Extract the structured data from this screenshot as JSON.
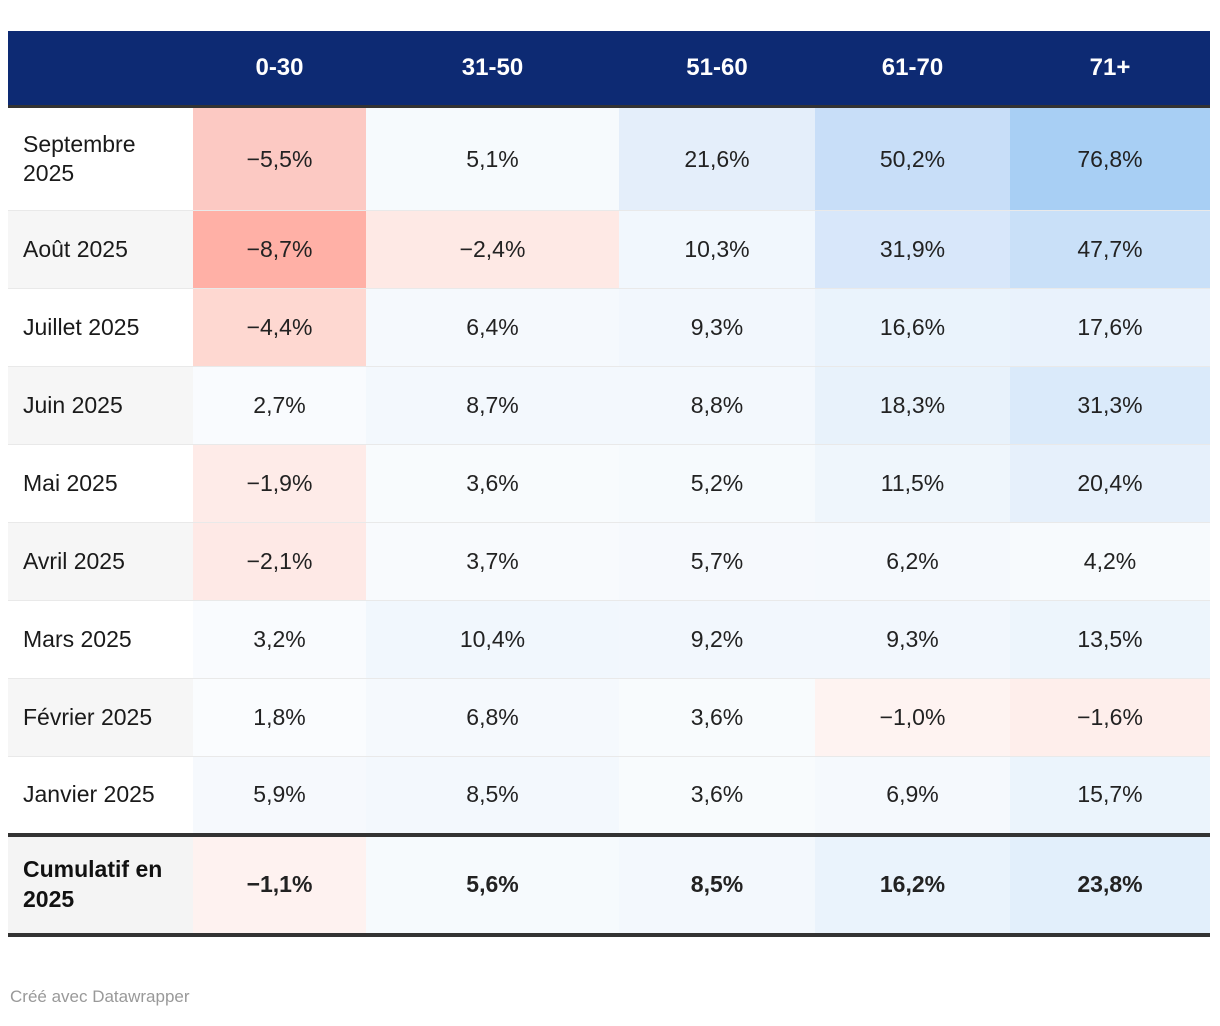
{
  "table": {
    "columns": [
      "0-30",
      "31-50",
      "51-60",
      "61-70",
      "71+"
    ],
    "header_bg": "#0d2a73",
    "header_text_color": "#ffffff",
    "border_color": "#333333",
    "rows": [
      {
        "label": "Septembre 2025",
        "cells": [
          {
            "text": "−5,5%",
            "bg": "#fcc9c3"
          },
          {
            "text": "5,1%",
            "bg": "#f6fafd"
          },
          {
            "text": "21,6%",
            "bg": "#e4eefa"
          },
          {
            "text": "50,2%",
            "bg": "#c8def8"
          },
          {
            "text": "76,8%",
            "bg": "#a8cff4"
          }
        ]
      },
      {
        "label": "Août 2025",
        "cells": [
          {
            "text": "−8,7%",
            "bg": "#ffb0a6"
          },
          {
            "text": "−2,4%",
            "bg": "#fee9e5"
          },
          {
            "text": "10,3%",
            "bg": "#f1f7fd"
          },
          {
            "text": "31,9%",
            "bg": "#d8e7fa"
          },
          {
            "text": "47,7%",
            "bg": "#c9e0f8"
          }
        ]
      },
      {
        "label": "Juillet 2025",
        "cells": [
          {
            "text": "−4,4%",
            "bg": "#fed8d1"
          },
          {
            "text": "6,4%",
            "bg": "#f5f9fd"
          },
          {
            "text": "9,3%",
            "bg": "#f2f7fd"
          },
          {
            "text": "16,6%",
            "bg": "#eaf3fc"
          },
          {
            "text": "17,6%",
            "bg": "#e9f2fc"
          }
        ]
      },
      {
        "label": "Juin 2025",
        "cells": [
          {
            "text": "2,7%",
            "bg": "#f9fbfe"
          },
          {
            "text": "8,7%",
            "bg": "#f3f8fd"
          },
          {
            "text": "8,8%",
            "bg": "#f3f8fd"
          },
          {
            "text": "18,3%",
            "bg": "#e8f2fb"
          },
          {
            "text": "31,3%",
            "bg": "#daeafa"
          }
        ]
      },
      {
        "label": "Mai 2025",
        "cells": [
          {
            "text": "−1,9%",
            "bg": "#feebe8"
          },
          {
            "text": "3,6%",
            "bg": "#f8fbfd"
          },
          {
            "text": "5,2%",
            "bg": "#f6fafd"
          },
          {
            "text": "11,5%",
            "bg": "#eff6fc"
          },
          {
            "text": "20,4%",
            "bg": "#e6f0fb"
          }
        ]
      },
      {
        "label": "Avril 2025",
        "cells": [
          {
            "text": "−2,1%",
            "bg": "#fee9e6"
          },
          {
            "text": "3,7%",
            "bg": "#f8fafd"
          },
          {
            "text": "5,7%",
            "bg": "#f6f9fd"
          },
          {
            "text": "6,2%",
            "bg": "#f5f9fd"
          },
          {
            "text": "4,2%",
            "bg": "#f7fafd"
          }
        ]
      },
      {
        "label": "Mars 2025",
        "cells": [
          {
            "text": "3,2%",
            "bg": "#f9fbfe"
          },
          {
            "text": "10,4%",
            "bg": "#f1f7fd"
          },
          {
            "text": "9,2%",
            "bg": "#f2f7fd"
          },
          {
            "text": "9,3%",
            "bg": "#f2f7fd"
          },
          {
            "text": "13,5%",
            "bg": "#edf5fc"
          }
        ]
      },
      {
        "label": "Février 2025",
        "cells": [
          {
            "text": "1,8%",
            "bg": "#fafcfe"
          },
          {
            "text": "6,8%",
            "bg": "#f5f9fd"
          },
          {
            "text": "3,6%",
            "bg": "#f8fbfd"
          },
          {
            "text": "−1,0%",
            "bg": "#fef3f1"
          },
          {
            "text": "−1,6%",
            "bg": "#feeeeb"
          }
        ]
      },
      {
        "label": "Janvier 2025",
        "cells": [
          {
            "text": "5,9%",
            "bg": "#f6f9fd"
          },
          {
            "text": "8,5%",
            "bg": "#f3f8fd"
          },
          {
            "text": "3,6%",
            "bg": "#f8fbfd"
          },
          {
            "text": "6,9%",
            "bg": "#f5f9fd"
          },
          {
            "text": "15,7%",
            "bg": "#ebf4fc"
          }
        ]
      }
    ],
    "total_row": {
      "label": "Cumulatif en 2025",
      "cells": [
        {
          "text": "−1,1%",
          "bg": "#fef2f0"
        },
        {
          "text": "5,6%",
          "bg": "#f6fafd"
        },
        {
          "text": "8,5%",
          "bg": "#f3f8fd"
        },
        {
          "text": "16,2%",
          "bg": "#eaf3fc"
        },
        {
          "text": "23,8%",
          "bg": "#e2effb"
        }
      ]
    }
  },
  "attribution": "Créé avec Datawrapper",
  "colors": {
    "header_navy": "#0d2a73",
    "strong_negative_red": "#ffb0a6",
    "strong_positive_blue": "#a8cff4",
    "stripe_gray": "#f6f6f6",
    "rule_dark": "#333333"
  },
  "chart_data": {
    "type": "table",
    "columns": [
      "0-30",
      "31-50",
      "51-60",
      "61-70",
      "71+"
    ],
    "row_labels": [
      "Septembre 2025",
      "Août 2025",
      "Juillet 2025",
      "Juin 2025",
      "Mai 2025",
      "Avril 2025",
      "Mars 2025",
      "Février 2025",
      "Janvier 2025",
      "Cumulatif en 2025"
    ],
    "values_pct": [
      [
        -5.5,
        5.1,
        21.6,
        50.2,
        76.8
      ],
      [
        -8.7,
        -2.4,
        10.3,
        31.9,
        47.7
      ],
      [
        -4.4,
        6.4,
        9.3,
        16.6,
        17.6
      ],
      [
        2.7,
        8.7,
        8.8,
        18.3,
        31.3
      ],
      [
        -1.9,
        3.6,
        5.2,
        11.5,
        20.4
      ],
      [
        -2.1,
        3.7,
        5.7,
        6.2,
        4.2
      ],
      [
        3.2,
        10.4,
        9.2,
        9.3,
        13.5
      ],
      [
        1.8,
        6.8,
        3.6,
        -1.0,
        -1.6
      ],
      [
        5.9,
        8.5,
        3.6,
        6.9,
        15.7
      ],
      [
        -1.1,
        5.6,
        8.5,
        16.2,
        23.8
      ]
    ],
    "heatmap": true,
    "negative_color": "#ffb0a6",
    "positive_color": "#a8cff4",
    "decimal_separator": ",",
    "unit": "%"
  }
}
